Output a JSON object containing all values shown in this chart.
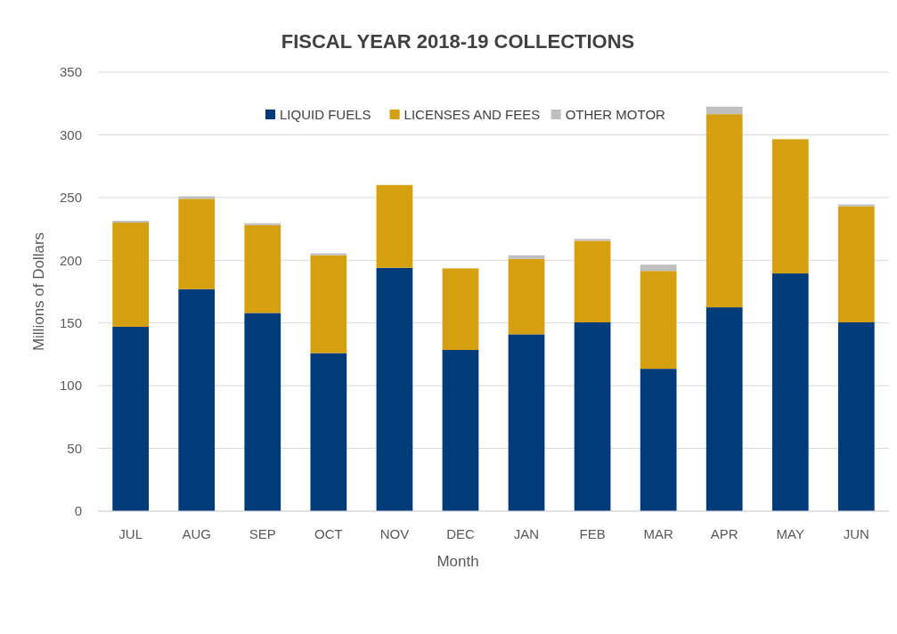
{
  "chart_data": {
    "type": "bar",
    "title": "FISCAL YEAR 2018-19 COLLECTIONS",
    "xlabel": "Month",
    "ylabel": "Millions of Dollars",
    "categories": [
      "JUL",
      "AUG",
      "SEP",
      "OCT",
      "NOV",
      "DEC",
      "JAN",
      "FEB",
      "MAR",
      "APR",
      "MAY",
      "JUN"
    ],
    "stacked": true,
    "ylim": [
      0,
      350
    ],
    "yticks": [
      0,
      50,
      100,
      150,
      200,
      250,
      300,
      350
    ],
    "grid": "y",
    "legend": "top",
    "series": [
      {
        "name": "LIQUID FUELS",
        "color": "#003b7a",
        "values": [
          147,
          177,
          158,
          126,
          194,
          128.5,
          141,
          150.5,
          113.5,
          162.5,
          189.5,
          150.5
        ]
      },
      {
        "name": "LICENSES AND FEES",
        "color": "#d59f0f",
        "values": [
          83,
          72,
          70,
          78,
          66,
          65,
          60,
          65,
          78,
          154,
          107,
          92.5
        ]
      },
      {
        "name": "OTHER MOTOR",
        "color": "#bfbfbf",
        "values": [
          1.5,
          2,
          1.5,
          1.5,
          null,
          null,
          3,
          1.5,
          5,
          6,
          null,
          1.5
        ]
      }
    ]
  }
}
